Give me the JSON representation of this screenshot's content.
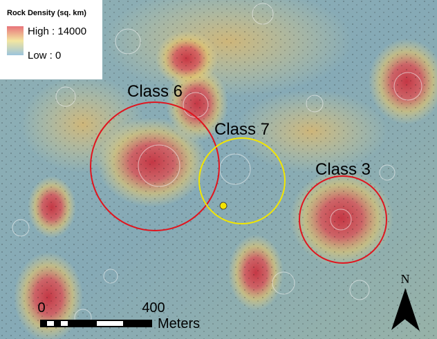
{
  "legend": {
    "title": "Rock Density (sq. km)",
    "high": "High : 14000",
    "low": "Low : 0"
  },
  "regions": [
    {
      "label": "Class 6"
    },
    {
      "label": "Class 7"
    },
    {
      "label": "Class 3"
    }
  ],
  "scale_bar": {
    "start": "0",
    "end": "400",
    "unit": "Meters"
  },
  "north_arrow": "N"
}
